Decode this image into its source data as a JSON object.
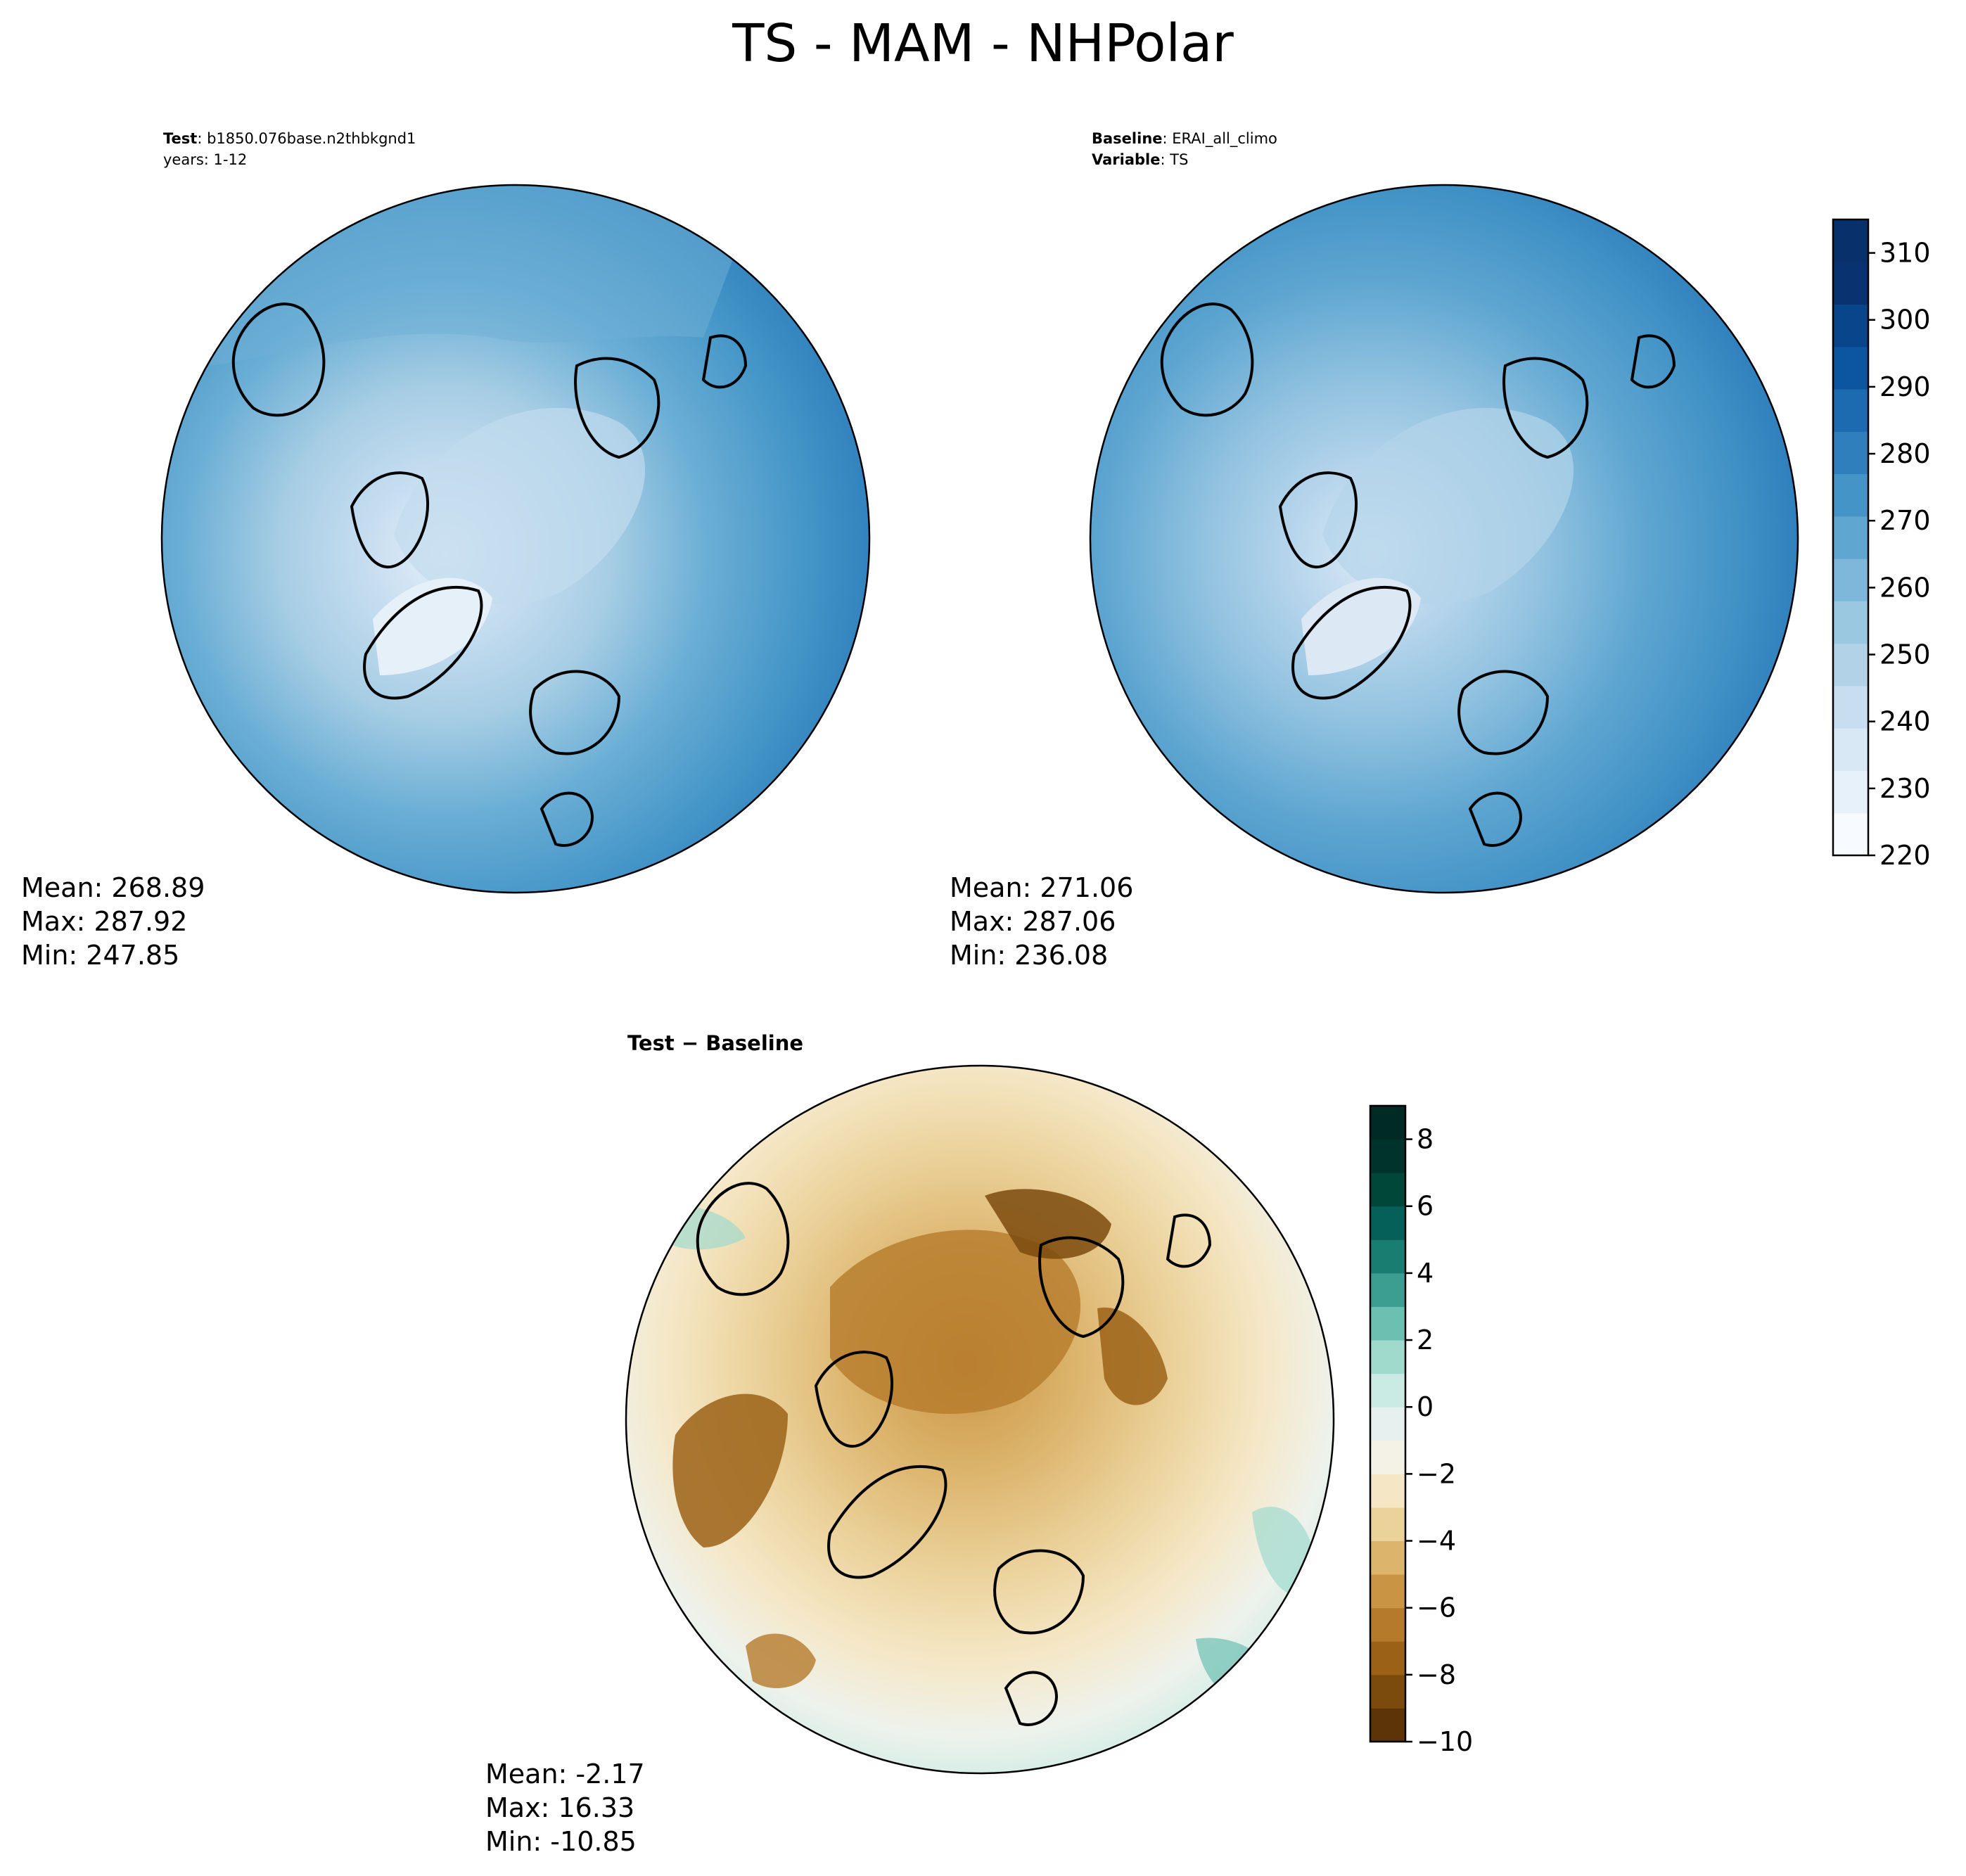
{
  "title": "TS - MAM - NHPolar",
  "test_panel": {
    "label_key": "Test",
    "label_value": "b1850.076base.n2thbkgnd1",
    "years": "years: 1-12",
    "stats": {
      "mean": "Mean: 268.89",
      "max": "Max: 287.92",
      "min": "Min: 247.85"
    }
  },
  "baseline_panel": {
    "label_key": "Baseline",
    "label_value": "ERAI_all_climo",
    "variable_key": "Variable",
    "variable_value": "TS",
    "stats": {
      "mean": "Mean: 271.06",
      "max": "Max: 287.06",
      "min": "Min: 236.08"
    }
  },
  "diff_panel": {
    "title": "Test − Baseline",
    "stats": {
      "mean": "Mean: -2.17",
      "max": "Max: 16.33",
      "min": "Min: -10.85"
    }
  },
  "chart_data": [
    {
      "type": "heatmap",
      "projection": "north polar stereographic",
      "panel": "test",
      "colorbar": {
        "ticks": [
          "220",
          "230",
          "240",
          "250",
          "260",
          "270",
          "280",
          "290",
          "300",
          "310"
        ],
        "range": [
          220,
          315
        ],
        "cmap": "Blues"
      },
      "stats": {
        "mean": 268.89,
        "max": 287.92,
        "min": 247.85
      }
    },
    {
      "type": "heatmap",
      "projection": "north polar stereographic",
      "panel": "baseline",
      "stats": {
        "mean": 271.06,
        "max": 287.06,
        "min": 236.08
      }
    },
    {
      "type": "heatmap",
      "projection": "north polar stereographic",
      "panel": "difference",
      "colorbar": {
        "ticks": [
          "−10",
          "−8",
          "−6",
          "−4",
          "−2",
          "0",
          "2",
          "4",
          "6",
          "8"
        ],
        "range": [
          -10,
          9
        ],
        "cmap": "BrBG"
      },
      "stats": {
        "mean": -2.17,
        "max": 16.33,
        "min": -10.85
      }
    }
  ],
  "colors": {
    "blues": [
      "#f7fbff",
      "#e7f1fa",
      "#d9e8f5",
      "#c9ddf0",
      "#b2d2e8",
      "#9ac8e0",
      "#7db8da",
      "#5fa6d1",
      "#4594c7",
      "#2f7fbc",
      "#1c6aaf",
      "#0c569f",
      "#08458a",
      "#083370"
    ],
    "brbg": [
      "#5c3408",
      "#7b4a0d",
      "#9b6116",
      "#b57a2a",
      "#c99545",
      "#dcb46c",
      "#ebd29b",
      "#f5e7c6",
      "#f4f1e6",
      "#e6f1ef",
      "#c9ebe4",
      "#9fdacd",
      "#6cc0b1",
      "#3c9e91",
      "#1a7d72",
      "#05605a",
      "#004639"
    ]
  }
}
